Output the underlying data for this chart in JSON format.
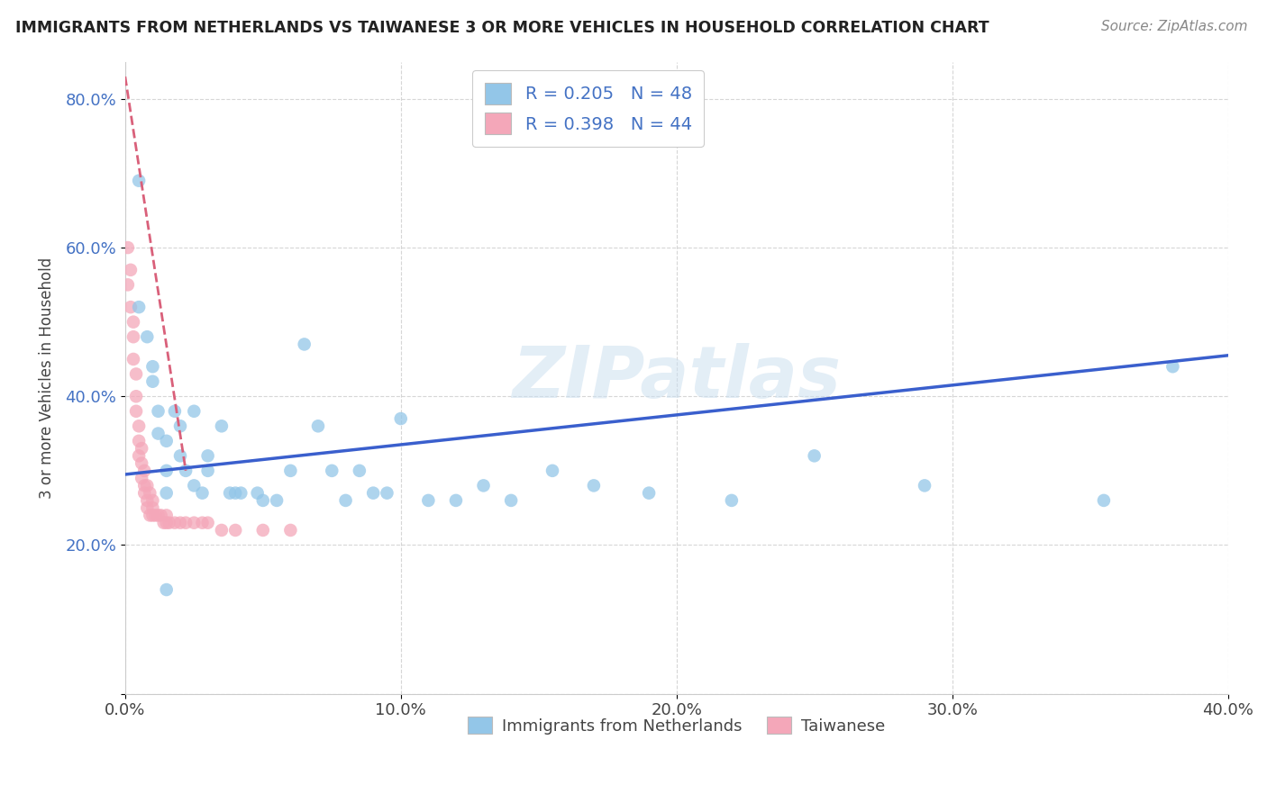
{
  "title": "IMMIGRANTS FROM NETHERLANDS VS TAIWANESE 3 OR MORE VEHICLES IN HOUSEHOLD CORRELATION CHART",
  "source": "Source: ZipAtlas.com",
  "ylabel": "3 or more Vehicles in Household",
  "legend_label1": "Immigrants from Netherlands",
  "legend_label2": "Taiwanese",
  "R1": 0.205,
  "N1": 48,
  "R2": 0.398,
  "N2": 44,
  "xlim": [
    0.0,
    0.4
  ],
  "ylim": [
    0.0,
    0.85
  ],
  "xtick_vals": [
    0.0,
    0.1,
    0.2,
    0.3,
    0.4
  ],
  "xtick_labels": [
    "0.0%",
    "10.0%",
    "20.0%",
    "30.0%",
    "40.0%"
  ],
  "ytick_vals": [
    0.0,
    0.2,
    0.4,
    0.6,
    0.8
  ],
  "ytick_labels": [
    "",
    "20.0%",
    "40.0%",
    "60.0%",
    "80.0%"
  ],
  "color_blue": "#93c6e8",
  "color_pink": "#f4a7b9",
  "color_blue_line": "#3a5fcd",
  "color_pink_line": "#d9607a",
  "watermark_text": "ZIPatlas",
  "blue_scatter_x": [
    0.005,
    0.005,
    0.008,
    0.01,
    0.01,
    0.012,
    0.012,
    0.015,
    0.015,
    0.015,
    0.018,
    0.02,
    0.02,
    0.022,
    0.025,
    0.025,
    0.028,
    0.03,
    0.03,
    0.035,
    0.038,
    0.04,
    0.042,
    0.048,
    0.05,
    0.055,
    0.06,
    0.065,
    0.07,
    0.075,
    0.08,
    0.085,
    0.09,
    0.095,
    0.1,
    0.11,
    0.12,
    0.13,
    0.14,
    0.155,
    0.17,
    0.19,
    0.22,
    0.25,
    0.29,
    0.355,
    0.38,
    0.015
  ],
  "blue_scatter_y": [
    0.69,
    0.52,
    0.48,
    0.44,
    0.42,
    0.38,
    0.35,
    0.34,
    0.3,
    0.27,
    0.38,
    0.36,
    0.32,
    0.3,
    0.38,
    0.28,
    0.27,
    0.32,
    0.3,
    0.36,
    0.27,
    0.27,
    0.27,
    0.27,
    0.26,
    0.26,
    0.3,
    0.47,
    0.36,
    0.3,
    0.26,
    0.3,
    0.27,
    0.27,
    0.37,
    0.26,
    0.26,
    0.28,
    0.26,
    0.3,
    0.28,
    0.27,
    0.26,
    0.32,
    0.28,
    0.26,
    0.44,
    0.14
  ],
  "pink_scatter_x": [
    0.001,
    0.001,
    0.002,
    0.002,
    0.003,
    0.003,
    0.003,
    0.004,
    0.004,
    0.004,
    0.005,
    0.005,
    0.005,
    0.006,
    0.006,
    0.006,
    0.007,
    0.007,
    0.007,
    0.008,
    0.008,
    0.008,
    0.009,
    0.009,
    0.01,
    0.01,
    0.01,
    0.011,
    0.012,
    0.013,
    0.014,
    0.015,
    0.015,
    0.016,
    0.018,
    0.02,
    0.022,
    0.025,
    0.028,
    0.03,
    0.035,
    0.04,
    0.05,
    0.06
  ],
  "pink_scatter_y": [
    0.6,
    0.55,
    0.57,
    0.52,
    0.5,
    0.48,
    0.45,
    0.43,
    0.4,
    0.38,
    0.36,
    0.34,
    0.32,
    0.33,
    0.31,
    0.29,
    0.3,
    0.28,
    0.27,
    0.28,
    0.26,
    0.25,
    0.27,
    0.24,
    0.26,
    0.25,
    0.24,
    0.24,
    0.24,
    0.24,
    0.23,
    0.24,
    0.23,
    0.23,
    0.23,
    0.23,
    0.23,
    0.23,
    0.23,
    0.23,
    0.22,
    0.22,
    0.22,
    0.22
  ],
  "blue_line_x": [
    0.0,
    0.4
  ],
  "blue_line_y": [
    0.295,
    0.455
  ],
  "pink_line_x": [
    0.0,
    0.022
  ],
  "pink_line_y": [
    0.83,
    0.3
  ]
}
